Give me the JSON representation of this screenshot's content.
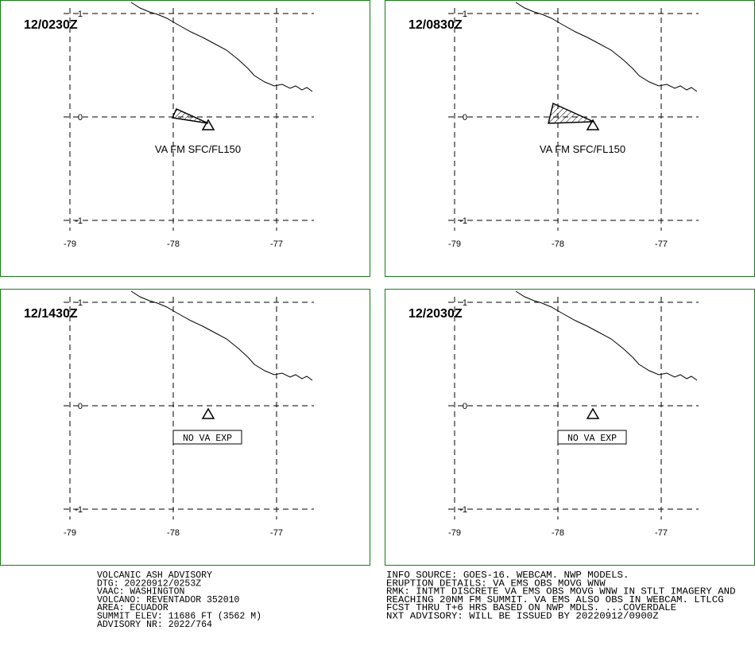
{
  "panels": [
    {
      "time": "12/0230Z",
      "label": "VA FM SFC/FL150"
    },
    {
      "time": "12/0830Z",
      "label": "VA FM SFC/FL150"
    },
    {
      "time": "12/1430Z",
      "label": "NO VA EXP"
    },
    {
      "time": "12/2030Z",
      "label": "NO VA EXP"
    }
  ],
  "xticks": [
    -79,
    -78,
    -77
  ],
  "yticks": [
    1,
    0,
    -1
  ],
  "advisory_left": [
    "VOLCANIC ASH ADVISORY",
    "DTG: 20220912/0253Z",
    "VAAC: WASHINGTON",
    "VOLCANO: REVENTADOR 352010",
    "AREA: ECUADOR",
    "SUMMIT ELEV: 11686 FT (3562 M)",
    "ADVISORY NR: 2022/764"
  ],
  "advisory_right": [
    "INFO SOURCE: GOES-16. WEBCAM. NWP MODELS.",
    "ERUPTION DETAILS: VA EMS OBS MOVG WNW",
    "RMK: INTMT DISCRETE VA EMS OBS MOVG WNW IN STLT IMAGERY AND",
    "REACHING 20NM FM SUMMIT. VA EMS ALSO OBS IN WEBCAM. LTLCG",
    "FCST THRU T+6 HRS BASED ON NWP MDLS. ...COVERDALE",
    "NXT ADVISORY: WILL BE ISSUED BY 20220912/0900Z"
  ]
}
